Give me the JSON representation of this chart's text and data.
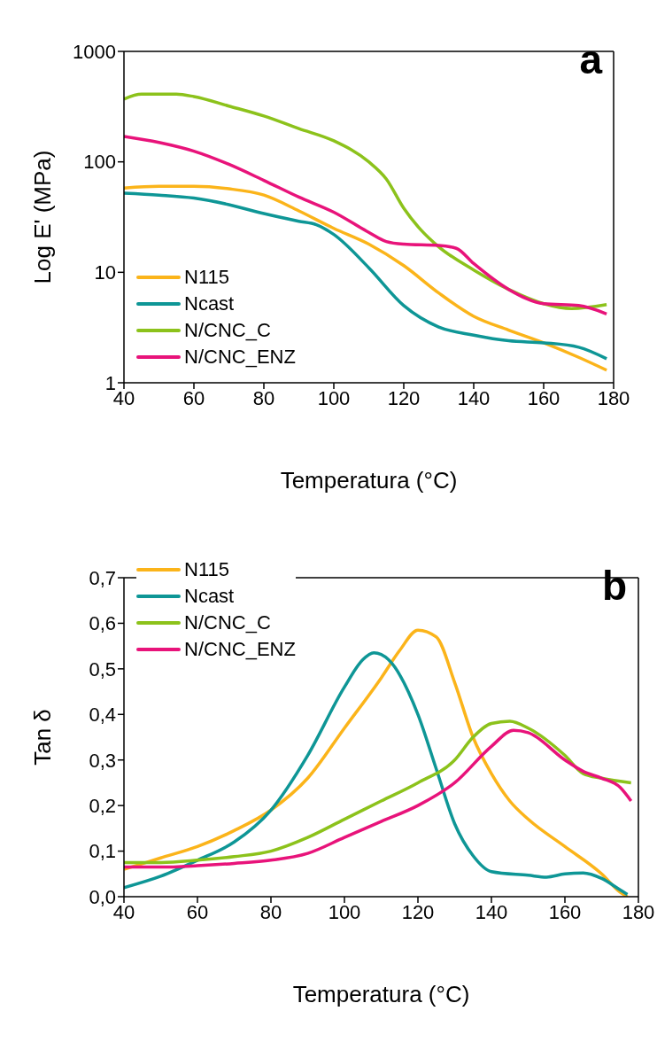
{
  "chart_data": [
    {
      "type": "line",
      "xlabel": "Temperatura (°C)",
      "ylabel": "Log E' (MPa)",
      "log": "y",
      "xlim": [
        40,
        180
      ],
      "xticks": [
        40,
        60,
        80,
        100,
        120,
        140,
        160,
        180
      ],
      "ylim": [
        1,
        1000
      ],
      "yticks": [
        1,
        10,
        100,
        1000
      ],
      "legend": "bottom left",
      "grid": false,
      "annotations": [
        "a"
      ],
      "series": [
        {
          "name": "N115",
          "color": "#fbb41a",
          "x": [
            40,
            50,
            60,
            70,
            80,
            90,
            100,
            110,
            120,
            130,
            140,
            150,
            160,
            170,
            178
          ],
          "values": [
            58,
            60,
            60,
            57,
            50,
            36,
            25,
            18,
            11.5,
            6.5,
            4,
            3,
            2.3,
            1.7,
            1.3
          ]
        },
        {
          "name": "Ncast",
          "color": "#0e9696",
          "x": [
            40,
            50,
            60,
            70,
            80,
            90,
            95,
            100,
            110,
            120,
            130,
            140,
            150,
            160,
            170,
            178
          ],
          "values": [
            52,
            50,
            47,
            41,
            34,
            29,
            27,
            22,
            11,
            5,
            3.2,
            2.7,
            2.4,
            2.3,
            2.1,
            1.65
          ]
        },
        {
          "name": "N/CNC_C",
          "color": "#8cc21b",
          "x": [
            40,
            45,
            55,
            60,
            70,
            80,
            90,
            100,
            110,
            115,
            120,
            125,
            130,
            140,
            150,
            160,
            168,
            178
          ],
          "values": [
            370,
            410,
            410,
            390,
            320,
            260,
            200,
            155,
            100,
            70,
            38,
            24,
            17,
            10.5,
            7,
            5.2,
            4.7,
            5.1
          ]
        },
        {
          "name": "N/CNC_ENZ",
          "color": "#e8137a",
          "x": [
            40,
            50,
            60,
            70,
            80,
            90,
            100,
            110,
            115,
            120,
            130,
            135,
            140,
            150,
            160,
            170,
            178
          ],
          "values": [
            170,
            150,
            125,
            95,
            68,
            48,
            35,
            23,
            19,
            18,
            17.5,
            16.5,
            12,
            7,
            5.2,
            5,
            4.2
          ]
        }
      ]
    },
    {
      "type": "line",
      "xlabel": "Temperatura (°C)",
      "ylabel": "Tan δ",
      "xlim": [
        40,
        180
      ],
      "xticks": [
        40,
        60,
        80,
        100,
        120,
        140,
        160,
        180
      ],
      "ylim": [
        0,
        0.7
      ],
      "yticks": [
        {
          "value": 0,
          "label": "0,0"
        },
        {
          "value": 0.1,
          "label": "0,1"
        },
        {
          "value": 0.2,
          "label": "0,2"
        },
        {
          "value": 0.3,
          "label": "0,3"
        },
        {
          "value": 0.4,
          "label": "0,4"
        },
        {
          "value": 0.5,
          "label": "0,5"
        },
        {
          "value": 0.6,
          "label": "0,6"
        },
        {
          "value": 0.7,
          "label": "0,7"
        }
      ],
      "legend": "top left",
      "grid": false,
      "annotations": [
        "b"
      ],
      "series": [
        {
          "name": "N115",
          "color": "#fbb41a",
          "x": [
            40,
            50,
            60,
            70,
            80,
            90,
            100,
            110,
            115,
            120,
            125,
            130,
            135,
            140,
            145,
            150,
            160,
            170,
            175,
            177
          ],
          "values": [
            0.06,
            0.085,
            0.11,
            0.145,
            0.19,
            0.26,
            0.37,
            0.48,
            0.54,
            0.585,
            0.57,
            0.47,
            0.35,
            0.27,
            0.21,
            0.17,
            0.11,
            0.05,
            0.01,
            0.0
          ]
        },
        {
          "name": "Ncast",
          "color": "#0e9696",
          "x": [
            40,
            50,
            60,
            70,
            80,
            90,
            100,
            105,
            108,
            112,
            120,
            125,
            130,
            135,
            140,
            150,
            155,
            160,
            165,
            170,
            175,
            177
          ],
          "values": [
            0.02,
            0.045,
            0.08,
            0.12,
            0.19,
            0.31,
            0.46,
            0.52,
            0.535,
            0.52,
            0.4,
            0.28,
            0.16,
            0.09,
            0.055,
            0.047,
            0.043,
            0.05,
            0.052,
            0.04,
            0.015,
            0.005
          ]
        },
        {
          "name": "N/CNC_C",
          "color": "#8cc21b",
          "x": [
            40,
            50,
            60,
            70,
            80,
            90,
            100,
            110,
            120,
            130,
            135,
            140,
            145,
            150,
            160,
            165,
            170,
            178
          ],
          "values": [
            0.075,
            0.075,
            0.08,
            0.088,
            0.1,
            0.13,
            0.17,
            0.21,
            0.25,
            0.3,
            0.35,
            0.38,
            0.385,
            0.37,
            0.31,
            0.27,
            0.26,
            0.25
          ]
        },
        {
          "name": "N/CNC_ENZ",
          "color": "#e8137a",
          "x": [
            40,
            50,
            60,
            70,
            80,
            90,
            100,
            110,
            120,
            130,
            140,
            146,
            150,
            160,
            165,
            170,
            175,
            178
          ],
          "values": [
            0.065,
            0.065,
            0.068,
            0.073,
            0.08,
            0.095,
            0.13,
            0.165,
            0.2,
            0.25,
            0.33,
            0.365,
            0.36,
            0.3,
            0.275,
            0.26,
            0.24,
            0.21
          ]
        }
      ]
    }
  ]
}
